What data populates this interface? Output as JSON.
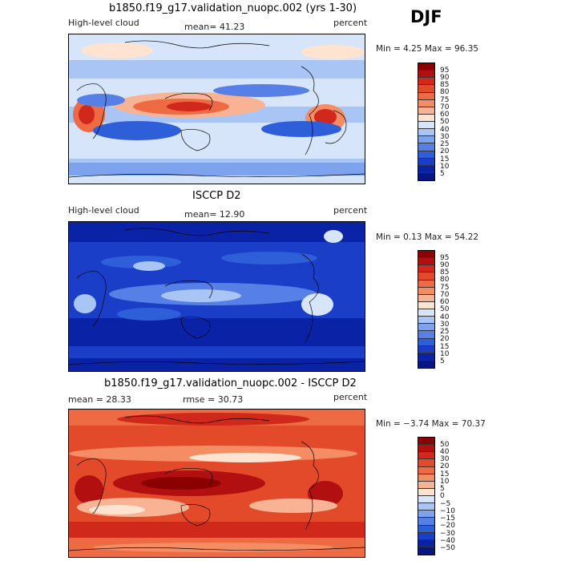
{
  "season": "DJF",
  "panels": [
    {
      "title": "b1850.f19_g17.validation_nuopc.002 (yrs 1-30)",
      "left_label": "High-level cloud",
      "stat_text": "mean=  41.23",
      "unit": "percent",
      "minmax": "Min =    4.25 Max =   96.35",
      "colorbar": {
        "labels": [
          "95",
          "90",
          "85",
          "80",
          "75",
          "70",
          "60",
          "50",
          "40",
          "30",
          "25",
          "20",
          "15",
          "10",
          "5"
        ],
        "colors": [
          "#8b0000",
          "#b21010",
          "#d0281a",
          "#e24a2a",
          "#ee6a42",
          "#f48c64",
          "#f8b394",
          "#fde3d0",
          "#d7e5fb",
          "#a9c5f5",
          "#7ea3ee",
          "#5680e6",
          "#2f5ed9",
          "#1a3ec8",
          "#0a22a6",
          "#061684"
        ]
      }
    },
    {
      "title": "ISCCP D2",
      "left_label": "High-level cloud",
      "stat_text": "mean=  12.90",
      "unit": "percent",
      "minmax": "Min =    0.13 Max =   54.22",
      "colorbar": {
        "labels": [
          "95",
          "90",
          "85",
          "80",
          "75",
          "70",
          "60",
          "50",
          "40",
          "30",
          "25",
          "20",
          "15",
          "10",
          "5"
        ],
        "colors": [
          "#8b0000",
          "#b21010",
          "#d0281a",
          "#e24a2a",
          "#ee6a42",
          "#f48c64",
          "#f8b394",
          "#fde3d0",
          "#d7e5fb",
          "#a9c5f5",
          "#7ea3ee",
          "#5680e6",
          "#2f5ed9",
          "#1a3ec8",
          "#0a22a6",
          "#061684"
        ]
      }
    },
    {
      "title": "b1850.f19_g17.validation_nuopc.002 - ISCCP D2",
      "left_label": "mean =   28.33",
      "stat_text": "rmse =   30.73",
      "unit": "percent",
      "minmax": "Min =  −3.74 Max =   70.37",
      "colorbar": {
        "labels": [
          "50",
          "40",
          "30",
          "20",
          "15",
          "10",
          "5",
          "0",
          "−5",
          "−10",
          "−15",
          "−20",
          "−30",
          "−40",
          "−50"
        ],
        "colors": [
          "#8b0000",
          "#b21010",
          "#d0281a",
          "#e24a2a",
          "#ee6a42",
          "#f48c64",
          "#f8b394",
          "#fde3d0",
          "#d7e5fb",
          "#a9c5f5",
          "#7ea3ee",
          "#5680e6",
          "#2f5ed9",
          "#1a3ec8",
          "#0a22a6",
          "#061684"
        ]
      }
    }
  ]
}
